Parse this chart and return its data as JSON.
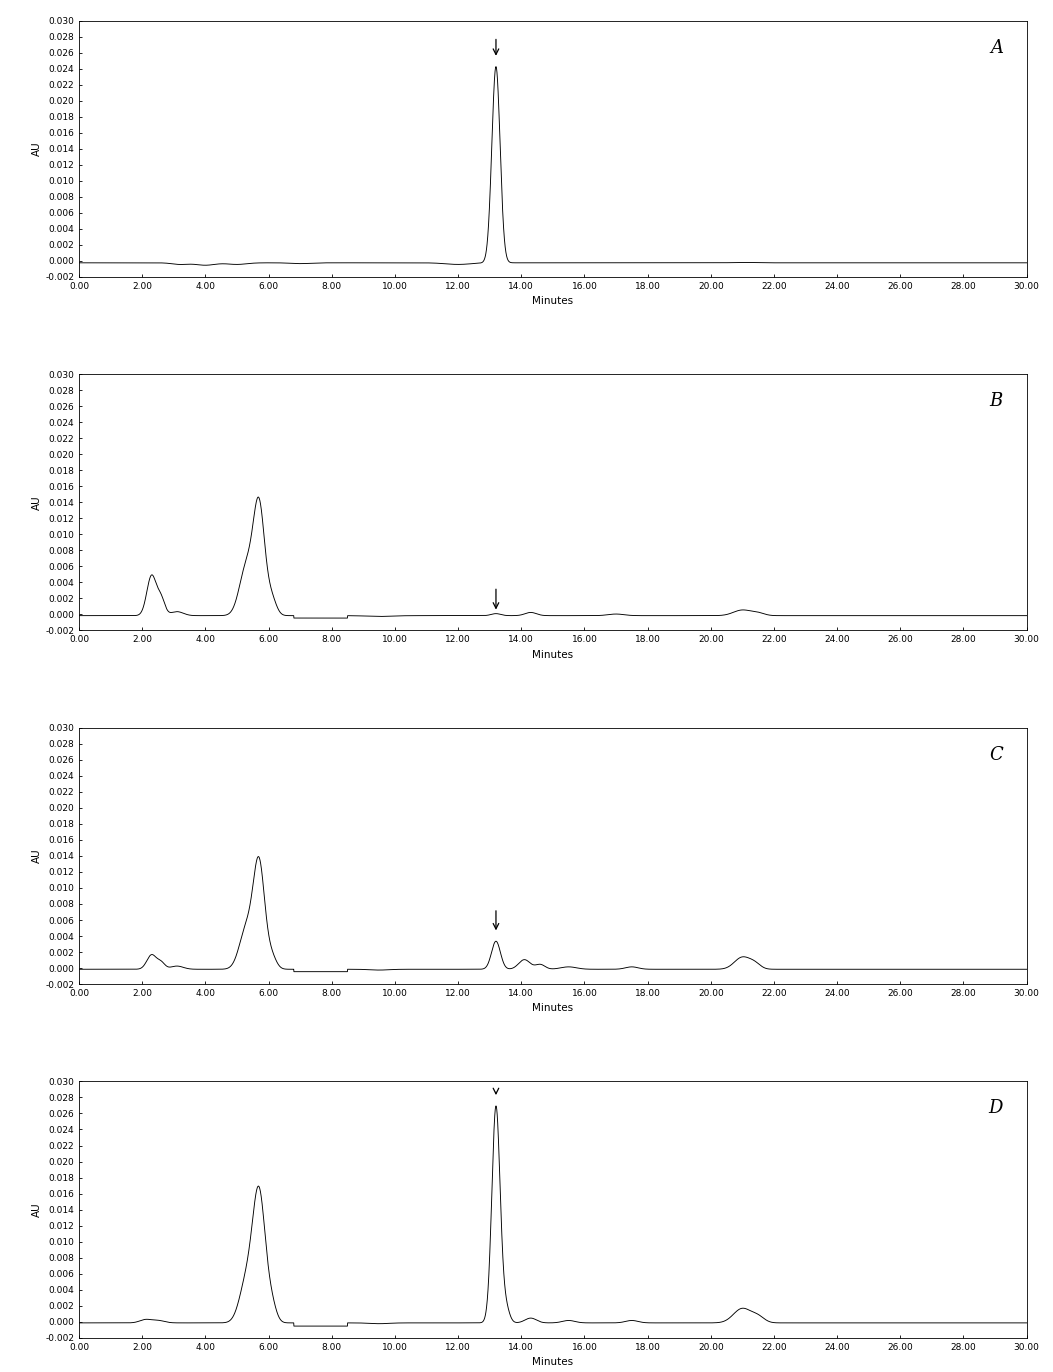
{
  "panels": [
    "A",
    "B",
    "C",
    "D"
  ],
  "xlim": [
    0,
    30
  ],
  "ylim": [
    -0.002,
    0.03
  ],
  "xlabel": "Minutes",
  "ylabel": "AU",
  "xticks": [
    0.0,
    2.0,
    4.0,
    6.0,
    8.0,
    10.0,
    12.0,
    14.0,
    16.0,
    18.0,
    20.0,
    22.0,
    24.0,
    26.0,
    28.0,
    30.0
  ],
  "yticks": [
    -0.002,
    0.0,
    0.002,
    0.004,
    0.006,
    0.008,
    0.01,
    0.012,
    0.014,
    0.016,
    0.018,
    0.02,
    0.022,
    0.024,
    0.026,
    0.028,
    0.03
  ],
  "line_color": "#000000",
  "bg_color": "#ffffff",
  "panel_label_fontsize": 13,
  "axis_label_fontsize": 7.5,
  "tick_fontsize": 6.5
}
